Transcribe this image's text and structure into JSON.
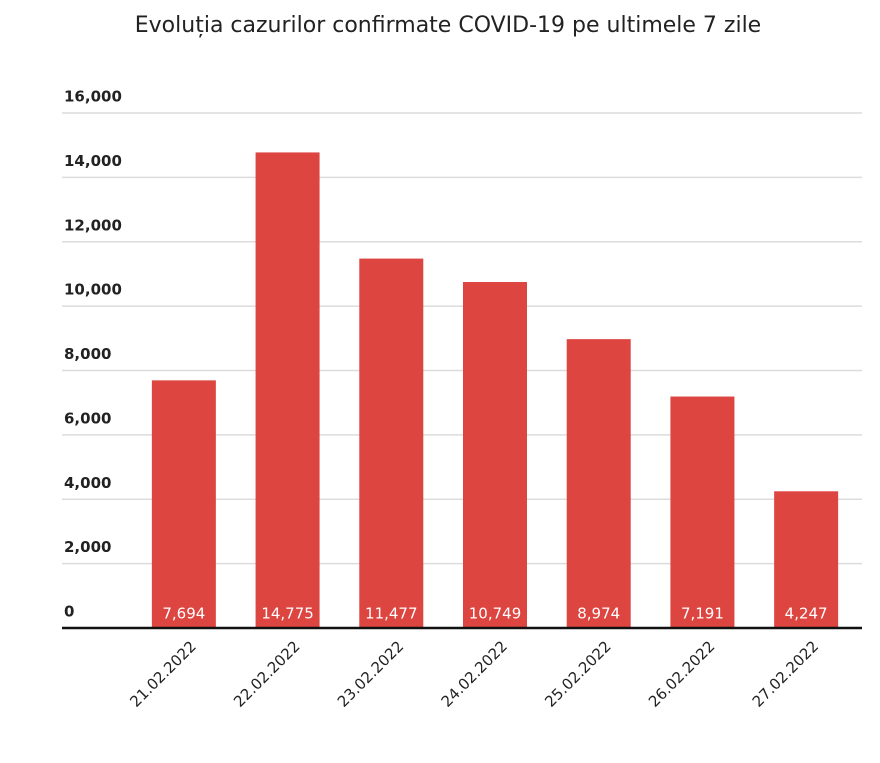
{
  "chart_data": {
    "type": "bar",
    "title": "Evoluția cazurilor confirmate COVID-19 pe ultimele 7 zile",
    "categories": [
      "21.02.2022",
      "22.02.2022",
      "23.02.2022",
      "24.02.2022",
      "25.02.2022",
      "26.02.2022",
      "27.02.2022"
    ],
    "values": [
      7694,
      14775,
      11477,
      10749,
      8974,
      7191,
      4247
    ],
    "value_labels": [
      "7,694",
      "14,775",
      "11,477",
      "10,749",
      "8,974",
      "7,191",
      "4,247"
    ],
    "color": "#dd4541",
    "ylim": [
      0,
      16000
    ],
    "yticks": [
      0,
      {
        "value": 2000,
        "label": "2,000"
      },
      {
        "value": 4000,
        "label": "4,000"
      },
      {
        "value": 6000,
        "label": "6,000"
      },
      {
        "value": 8000,
        "label": "8,000"
      },
      {
        "value": 10000,
        "label": "10,000"
      },
      {
        "value": 12000,
        "label": "12,000"
      },
      {
        "value": 14000,
        "label": "14,000"
      },
      {
        "value": 16000,
        "label": "16,000"
      }
    ],
    "grid": true
  }
}
